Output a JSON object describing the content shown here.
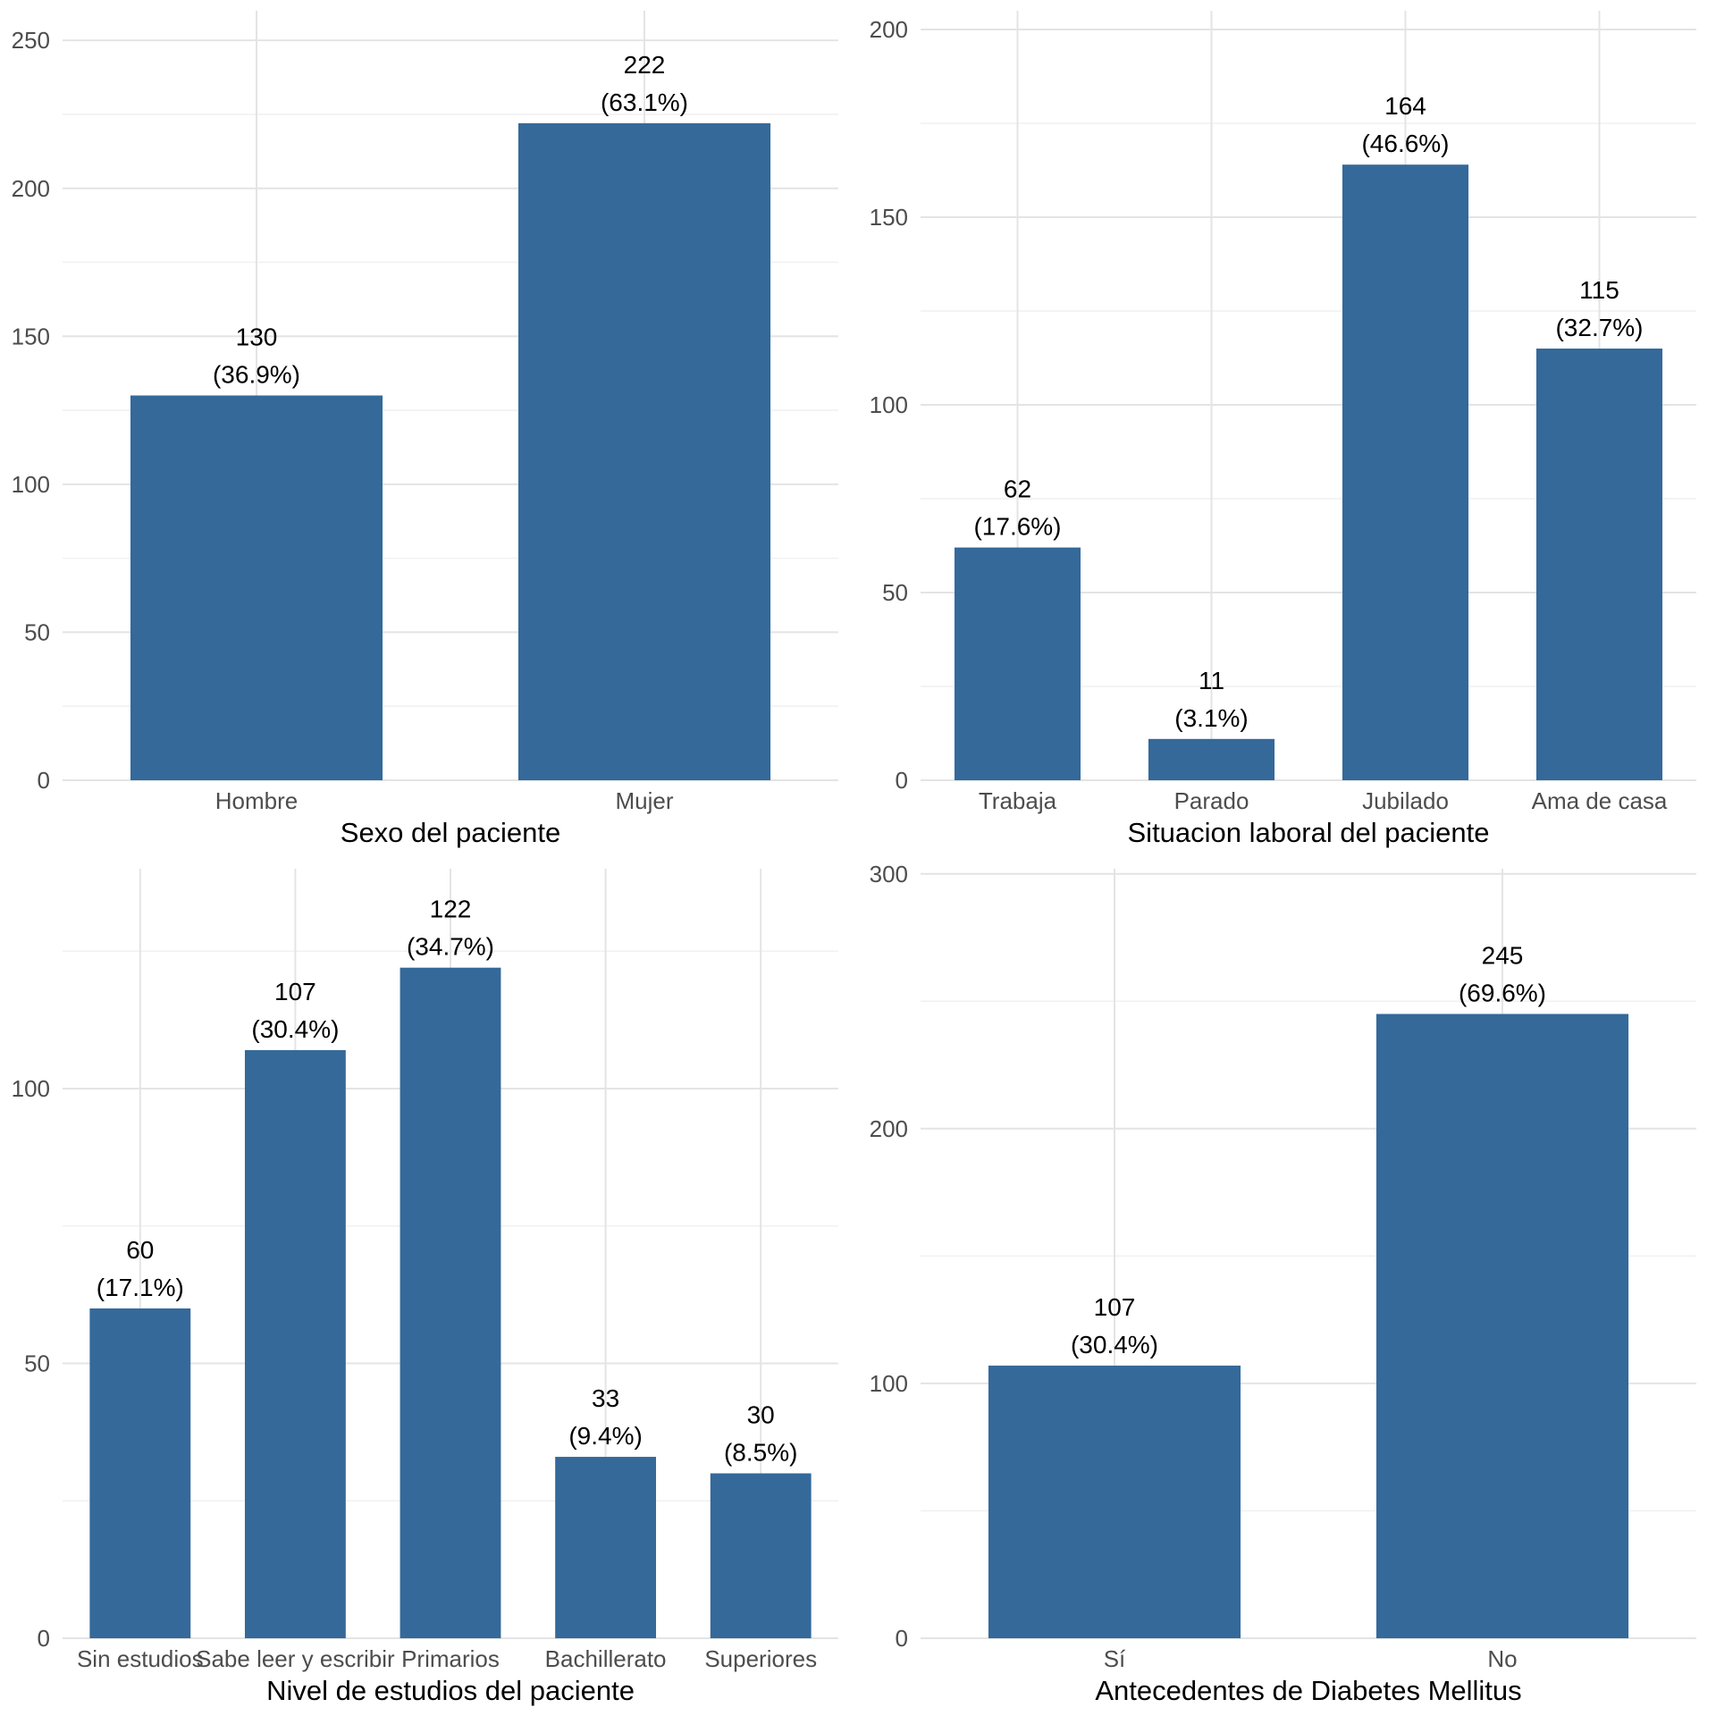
{
  "page": {
    "background": "#FFFFFF",
    "description": "2x2 grid of vertical bar charts of patient characteristics"
  },
  "colors": {
    "bar_fill": "#34699A",
    "grid_major": "#E4E4E4",
    "grid_minor": "#F1F1F1",
    "axis_text": "#4D4D4D",
    "bar_label_text": "#000000",
    "axis_title_text": "#000000"
  },
  "chart_data": [
    {
      "type": "bar",
      "title": "",
      "xlabel": "Sexo del paciente",
      "ylabel": "",
      "categories": [
        "Hombre",
        "Mujer"
      ],
      "values": [
        130,
        222
      ],
      "percents": [
        36.9,
        63.1
      ],
      "value_labels": [
        "130",
        "222"
      ],
      "pct_labels": [
        "(36.9%)",
        "(63.1%)"
      ],
      "yticks": [
        0,
        50,
        100,
        150,
        200,
        250
      ],
      "ytick_labels": [
        "0",
        "50",
        "100",
        "150",
        "200",
        "250"
      ],
      "minor_step": 25,
      "ylim": [
        0,
        260
      ],
      "grid": "on",
      "legend": "none"
    },
    {
      "type": "bar",
      "title": "",
      "xlabel": "Situacion laboral del paciente",
      "ylabel": "",
      "categories": [
        "Trabaja",
        "Parado",
        "Jubilado",
        "Ama de casa"
      ],
      "values": [
        62,
        11,
        164,
        115
      ],
      "percents": [
        17.6,
        3.1,
        46.6,
        32.7
      ],
      "value_labels": [
        "62",
        "11",
        "164",
        "115"
      ],
      "pct_labels": [
        "(17.6%)",
        "(3.1%)",
        "(46.6%)",
        "(32.7%)"
      ],
      "yticks": [
        0,
        50,
        100,
        150,
        200
      ],
      "ytick_labels": [
        "0",
        "50",
        "100",
        "150",
        "200"
      ],
      "minor_step": 25,
      "ylim": [
        0,
        205
      ],
      "grid": "on",
      "legend": "none"
    },
    {
      "type": "bar",
      "title": "",
      "xlabel": "Nivel de estudios del paciente",
      "ylabel": "",
      "categories": [
        "Sin estudios",
        "Sabe leer y escribir",
        "Primarios",
        "Bachillerato",
        "Superiores"
      ],
      "values": [
        60,
        107,
        122,
        33,
        30
      ],
      "percents": [
        17.1,
        30.4,
        34.7,
        9.4,
        8.5
      ],
      "value_labels": [
        "60",
        "107",
        "122",
        "33",
        "30"
      ],
      "pct_labels": [
        "(17.1%)",
        "(30.4%)",
        "(34.7%)",
        "(9.4%)",
        "(8.5%)"
      ],
      "yticks": [
        0,
        50,
        100
      ],
      "ytick_labels": [
        "0",
        "50",
        "100"
      ],
      "minor_step": 25,
      "ylim": [
        0,
        140
      ],
      "grid": "on",
      "legend": "none"
    },
    {
      "type": "bar",
      "title": "",
      "xlabel": "Antecedentes de Diabetes Mellitus",
      "ylabel": "",
      "categories": [
        "Sí",
        "No"
      ],
      "values": [
        107,
        245
      ],
      "percents": [
        30.4,
        69.6
      ],
      "value_labels": [
        "107",
        "245"
      ],
      "pct_labels": [
        "(30.4%)",
        "(69.6%)"
      ],
      "yticks": [
        0,
        100,
        200,
        300
      ],
      "ytick_labels": [
        "0",
        "100",
        "200",
        "300"
      ],
      "minor_step": 50,
      "ylim": [
        0,
        302
      ],
      "grid": "on",
      "legend": "none"
    }
  ]
}
